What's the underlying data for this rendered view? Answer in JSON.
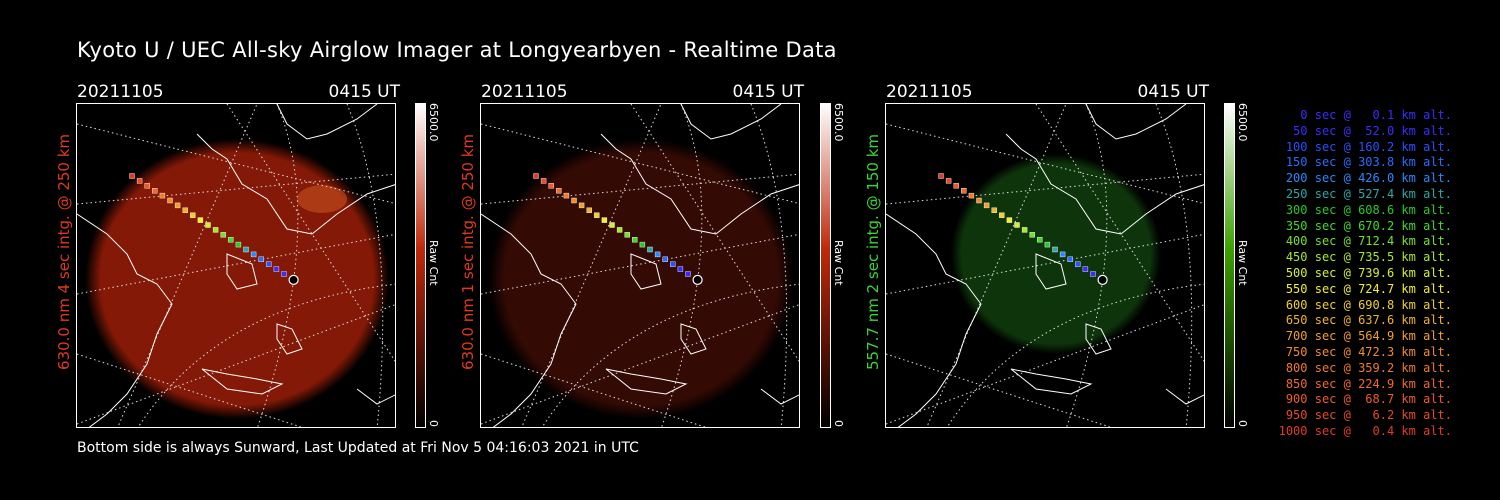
{
  "header": {
    "title": "Kyoto U / UEC All-sky Airglow Imager at Longyearbyen - Realtime Data"
  },
  "panels": [
    {
      "date": "20211105",
      "time": "0415 UT",
      "ylabel": "630.0 nm 4 sec intg. @ 250 km",
      "ylabel_color": "#e03a1c",
      "colorbar_max": "6500.0",
      "colorbar_unit": "Raw Cnt",
      "colorbar_min": "0",
      "colorbar_color": "#c0280a",
      "glow_color": "#8a1a06",
      "glow_intensity": 0.95
    },
    {
      "date": "20211105",
      "time": "0415 UT",
      "ylabel": "630.0 nm 1 sec intg. @ 250 km",
      "ylabel_color": "#e03a1c",
      "colorbar_max": "6500.0",
      "colorbar_unit": "Raw Cnt",
      "colorbar_min": "0",
      "colorbar_color": "#c0280a",
      "glow_color": "#3a0b04",
      "glow_intensity": 0.9
    },
    {
      "date": "20211105",
      "time": "0415 UT",
      "ylabel": "557.7 nm 2 sec intg. @ 150 km",
      "ylabel_color": "#3ad43a",
      "colorbar_max": "6500.0",
      "colorbar_unit": "Raw Cnt",
      "colorbar_min": "0",
      "colorbar_color": "#3aa000",
      "glow_color": "#0f3a0c",
      "glow_intensity": 0.9
    }
  ],
  "legend": [
    {
      "text": "  0 sec @   0.1 km alt.",
      "color": "#3a2cff"
    },
    {
      "text": " 50 sec @  52.0 km alt.",
      "color": "#3a2cff"
    },
    {
      "text": "100 sec @ 160.2 km alt.",
      "color": "#2a50ff"
    },
    {
      "text": "150 sec @ 303.8 km alt.",
      "color": "#2a6cff"
    },
    {
      "text": "200 sec @ 426.0 km alt.",
      "color": "#2a88ff"
    },
    {
      "text": "250 sec @ 527.4 km alt.",
      "color": "#2aa8a8"
    },
    {
      "text": "300 sec @ 608.6 km alt.",
      "color": "#2ac82a"
    },
    {
      "text": "350 sec @ 670.2 km alt.",
      "color": "#44d82a"
    },
    {
      "text": "400 sec @ 712.4 km alt.",
      "color": "#78e02a"
    },
    {
      "text": "450 sec @ 735.5 km alt.",
      "color": "#a8e82a"
    },
    {
      "text": "500 sec @ 739.6 km alt.",
      "color": "#d4f02a"
    },
    {
      "text": "550 sec @ 724.7 km alt.",
      "color": "#f0f02a"
    },
    {
      "text": "600 sec @ 690.8 km alt.",
      "color": "#f0d02a"
    },
    {
      "text": "650 sec @ 637.6 km alt.",
      "color": "#f0b42a"
    },
    {
      "text": "700 sec @ 564.9 km alt.",
      "color": "#f0a02a"
    },
    {
      "text": "750 sec @ 472.3 km alt.",
      "color": "#f08c2a"
    },
    {
      "text": "800 sec @ 359.2 km alt.",
      "color": "#f07a2a"
    },
    {
      "text": "850 sec @ 224.9 km alt.",
      "color": "#f06a2a"
    },
    {
      "text": "900 sec @  68.7 km alt.",
      "color": "#f05a2a"
    },
    {
      "text": "950 sec @   6.2 km alt.",
      "color": "#e84a2a"
    },
    {
      "text": "1000 sec @   0.4 km alt.",
      "color": "#e03a2a"
    }
  ],
  "footer": {
    "text": "Bottom side is always Sunward, Last Updated at Fri Nov  5 04:16:03 2021 in UTC"
  }
}
